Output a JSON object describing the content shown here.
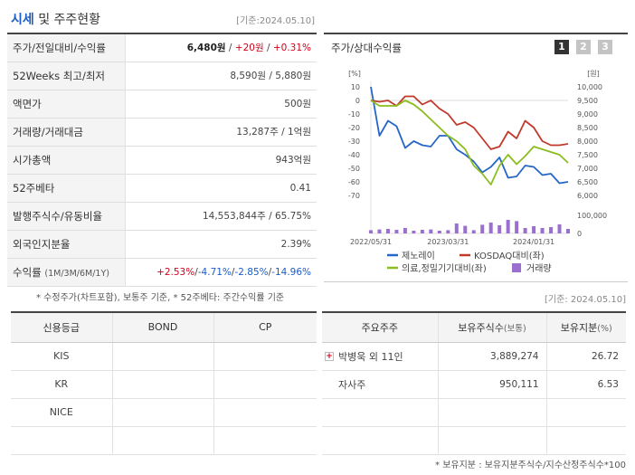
{
  "header": {
    "title_accent": "시세",
    "title_rest": " 및 주주현황",
    "ref_date": "[기준:2024.05.10]"
  },
  "quote": {
    "rows": [
      {
        "label": "주가/전일대비/수익률",
        "price": "6,480원",
        "change": "+20원",
        "rate": "+0.31%"
      },
      {
        "label": "52Weeks 최고/최저",
        "value": "8,590원 / 5,880원"
      },
      {
        "label": "액면가",
        "value": "500원"
      },
      {
        "label": "거래량/거래대금",
        "value": "13,287주 / 1억원"
      },
      {
        "label": "시가총액",
        "value": "943억원"
      },
      {
        "label": "52주베타",
        "value": "0.41"
      },
      {
        "label": "발행주식수/유동비율",
        "value": "14,553,844주 / 65.75%"
      },
      {
        "label": "외국인지분율",
        "value": "2.39%"
      },
      {
        "label": "수익률",
        "sub": "(1M/3M/6M/1Y)",
        "r1": "+2.53%",
        "r2": "-4.71%",
        "r3": "-2.85%",
        "r4": "-14.96%",
        "sep": "/"
      }
    ],
    "note": "* 수정주가(차트포함), 보통주 기준, * 52주베타: 주간수익률 기준"
  },
  "chart": {
    "title": "주가/상대수익률",
    "pages": [
      "1",
      "2",
      "3"
    ],
    "unit_left": "[%]",
    "unit_right": "[원]"
  },
  "chart_data": {
    "type": "line",
    "title": "주가/상대수익률",
    "x_ticks": [
      "2022/05/31",
      "2023/03/31",
      "2024/01/31"
    ],
    "y_left": {
      "label": "[%]",
      "ticks": [
        10,
        0,
        -10,
        -20,
        -30,
        -40,
        -50,
        -60,
        -70
      ],
      "range": [
        -70,
        10
      ]
    },
    "y_right": {
      "label": "[원]",
      "ticks": [
        "10,000",
        "9,500",
        "9,000",
        "8,500",
        "8,000",
        "7,500",
        "7,000",
        "6,500",
        "6,000"
      ],
      "range": [
        6000,
        10000
      ]
    },
    "volume_axis": {
      "ticks": [
        "100,000",
        "0"
      ],
      "range": [
        0,
        100000
      ]
    },
    "series": [
      {
        "name": "제노레이",
        "color": "#2566c8",
        "values": [
          10,
          -26,
          -15,
          -19,
          -35,
          -30,
          -33,
          -34,
          -26,
          -26,
          -36,
          -40,
          -45,
          -53,
          -49,
          -42,
          -57,
          -56,
          -48,
          -49,
          -55,
          -54,
          -61,
          -60
        ]
      },
      {
        "name": "KOSDAQ대비(좌)",
        "color": "#c0392b",
        "values": [
          0,
          -1,
          0,
          -4,
          3,
          3,
          -3,
          0,
          -6,
          -10,
          -18,
          -16,
          -20,
          -28,
          -36,
          -34,
          -23,
          -28,
          -15,
          -20,
          -30,
          -33,
          -33,
          -32
        ]
      },
      {
        "name": "의료,정밀기기대비(좌)",
        "color": "#8bbd1f",
        "values": [
          0,
          -4,
          -4,
          -4,
          0,
          -3,
          -8,
          -14,
          -20,
          -26,
          -30,
          -36,
          -48,
          -54,
          -62,
          -48,
          -40,
          -47,
          -41,
          -34,
          -36,
          -38,
          -40,
          -46
        ]
      },
      {
        "name": "거래량",
        "color": "#9b6fd0",
        "values": [
          18000,
          22000,
          25000,
          20000,
          30000,
          15000,
          20000,
          22000,
          15000,
          18000,
          55000,
          42000,
          18000,
          48000,
          60000,
          45000,
          75000,
          68000,
          30000,
          40000,
          30000,
          35000,
          50000,
          25000
        ]
      }
    ],
    "legend_placement": "bottom"
  },
  "credit": {
    "headers": [
      "신용등급",
      "BOND",
      "CP"
    ],
    "rows": [
      [
        "KIS",
        "",
        ""
      ],
      [
        "KR",
        "",
        ""
      ],
      [
        "NICE",
        "",
        ""
      ],
      [
        "",
        "",
        ""
      ]
    ]
  },
  "holders": {
    "ref_date": "[기준: 2024.05.10]",
    "headers": {
      "name": "주요주주",
      "shares": "보유주식수",
      "shares_sub": "(보통)",
      "ratio": "보유지분",
      "ratio_sub": "(%)"
    },
    "rows": [
      {
        "name": "박병욱 외 11인",
        "shares": "3,889,274",
        "ratio": "26.72",
        "expand": "+"
      },
      {
        "name": "자사주",
        "shares": "950,111",
        "ratio": "6.53"
      },
      {
        "name": "",
        "shares": "",
        "ratio": ""
      },
      {
        "name": "",
        "shares": "",
        "ratio": ""
      }
    ],
    "note": "* 보유지분 : 보유지분주식수/지수산정주식수*100"
  }
}
